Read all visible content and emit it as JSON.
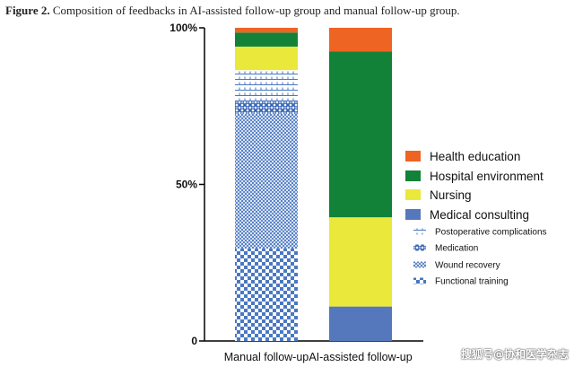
{
  "figure": {
    "caption_label": "Figure 2.",
    "caption_text": "Composition of feedbacks in AI-assisted follow-up group and manual follow-up group."
  },
  "watermark": "搜狐号@协和医学杂志",
  "chart_data": {
    "type": "bar",
    "stacked": true,
    "percent": true,
    "title": "Composition of feedbacks in AI-assisted follow-up group and manual follow-up group.",
    "xlabel": "",
    "ylabel": "",
    "ylim": [
      0,
      100
    ],
    "yticks": [
      {
        "value": 0,
        "label": "0"
      },
      {
        "value": 50,
        "label": "50%"
      },
      {
        "value": 100,
        "label": "100%"
      }
    ],
    "categories": [
      "Manual follow-up",
      "AI-assisted follow-up"
    ],
    "series": [
      {
        "name": "Functional training",
        "pattern": "functional",
        "color": "#4a78c2",
        "values": [
          29.5,
          0
        ]
      },
      {
        "name": "Wound recovery",
        "pattern": "wound",
        "color": "#4a78c2",
        "values": [
          43,
          0
        ]
      },
      {
        "name": "Medication",
        "pattern": "medication",
        "color": "#4a78c2",
        "values": [
          4,
          0
        ]
      },
      {
        "name": "Postoperative complications",
        "pattern": "postop",
        "color": "#4a78c2",
        "values": [
          10,
          0
        ]
      },
      {
        "name": "Medical consulting",
        "pattern": "solid",
        "color": "#5578bd",
        "values": [
          0,
          11
        ]
      },
      {
        "name": "Nursing",
        "pattern": "solid",
        "color": "#eae83a",
        "values": [
          7.5,
          28.5
        ]
      },
      {
        "name": "Hospital environment",
        "pattern": "solid",
        "color": "#128238",
        "values": [
          4.5,
          53
        ]
      },
      {
        "name": "Health education",
        "pattern": "solid",
        "color": "#ee6422",
        "values": [
          1.5,
          7.5
        ]
      }
    ],
    "legend": {
      "position": "right",
      "order": [
        "Health education",
        "Hospital environment",
        "Nursing",
        "Medical consulting",
        "Postoperative complications",
        "Medication",
        "Wound recovery",
        "Functional training"
      ]
    }
  }
}
